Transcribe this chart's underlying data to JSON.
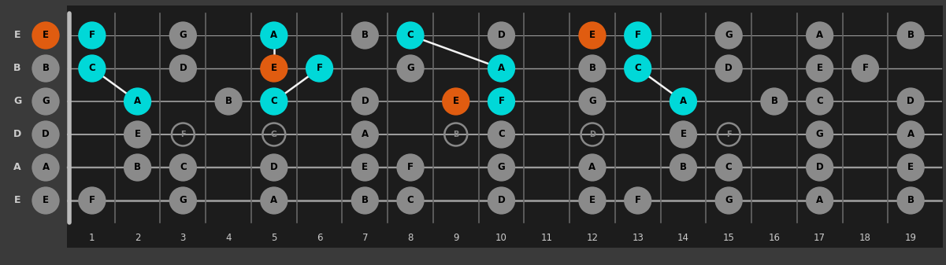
{
  "bg_color": "#3a3a3a",
  "fretboard_color": "#1c1c1c",
  "string_color": "#c8c8c8",
  "fret_color": "#666666",
  "nut_color": "#bbbbbb",
  "num_frets": 19,
  "num_strings": 6,
  "string_names": [
    "E",
    "B",
    "G",
    "D",
    "A",
    "E"
  ],
  "note_color_gray": "#8a8a8a",
  "note_color_orange": "#e05c10",
  "note_color_cyan": "#00d8d8",
  "fret_label_color": "#cccccc",
  "string_label_color": "#cccccc",
  "notes": [
    {
      "string": 0,
      "fret": 0,
      "note": "E",
      "type": "orange"
    },
    {
      "string": 0,
      "fret": 1,
      "note": "F",
      "type": "cyan"
    },
    {
      "string": 0,
      "fret": 3,
      "note": "G",
      "type": "gray"
    },
    {
      "string": 0,
      "fret": 5,
      "note": "A",
      "type": "cyan"
    },
    {
      "string": 0,
      "fret": 7,
      "note": "B",
      "type": "gray"
    },
    {
      "string": 0,
      "fret": 8,
      "note": "C",
      "type": "cyan"
    },
    {
      "string": 0,
      "fret": 10,
      "note": "D",
      "type": "gray"
    },
    {
      "string": 0,
      "fret": 12,
      "note": "E",
      "type": "orange"
    },
    {
      "string": 0,
      "fret": 13,
      "note": "F",
      "type": "cyan"
    },
    {
      "string": 0,
      "fret": 15,
      "note": "G",
      "type": "gray"
    },
    {
      "string": 0,
      "fret": 17,
      "note": "A",
      "type": "gray"
    },
    {
      "string": 0,
      "fret": 19,
      "note": "B",
      "type": "gray"
    },
    {
      "string": 1,
      "fret": 0,
      "note": "B",
      "type": "gray"
    },
    {
      "string": 1,
      "fret": 1,
      "note": "C",
      "type": "cyan"
    },
    {
      "string": 1,
      "fret": 3,
      "note": "D",
      "type": "gray"
    },
    {
      "string": 1,
      "fret": 5,
      "note": "E",
      "type": "orange"
    },
    {
      "string": 1,
      "fret": 6,
      "note": "F",
      "type": "cyan"
    },
    {
      "string": 1,
      "fret": 8,
      "note": "G",
      "type": "gray"
    },
    {
      "string": 1,
      "fret": 10,
      "note": "A",
      "type": "cyan"
    },
    {
      "string": 1,
      "fret": 12,
      "note": "B",
      "type": "gray"
    },
    {
      "string": 1,
      "fret": 13,
      "note": "C",
      "type": "cyan"
    },
    {
      "string": 1,
      "fret": 15,
      "note": "D",
      "type": "gray"
    },
    {
      "string": 1,
      "fret": 17,
      "note": "E",
      "type": "gray"
    },
    {
      "string": 1,
      "fret": 18,
      "note": "F",
      "type": "gray"
    },
    {
      "string": 2,
      "fret": 0,
      "note": "G",
      "type": "gray"
    },
    {
      "string": 2,
      "fret": 2,
      "note": "A",
      "type": "cyan"
    },
    {
      "string": 2,
      "fret": 4,
      "note": "B",
      "type": "gray"
    },
    {
      "string": 2,
      "fret": 5,
      "note": "C",
      "type": "cyan"
    },
    {
      "string": 2,
      "fret": 7,
      "note": "D",
      "type": "gray"
    },
    {
      "string": 2,
      "fret": 9,
      "note": "E",
      "type": "orange"
    },
    {
      "string": 2,
      "fret": 10,
      "note": "F",
      "type": "cyan"
    },
    {
      "string": 2,
      "fret": 12,
      "note": "G",
      "type": "gray"
    },
    {
      "string": 2,
      "fret": 14,
      "note": "A",
      "type": "cyan"
    },
    {
      "string": 2,
      "fret": 16,
      "note": "B",
      "type": "gray"
    },
    {
      "string": 2,
      "fret": 17,
      "note": "C",
      "type": "gray"
    },
    {
      "string": 2,
      "fret": 19,
      "note": "D",
      "type": "gray"
    },
    {
      "string": 3,
      "fret": 0,
      "note": "D",
      "type": "gray"
    },
    {
      "string": 3,
      "fret": 2,
      "note": "E",
      "type": "gray"
    },
    {
      "string": 3,
      "fret": 3,
      "note": "F",
      "type": "outline"
    },
    {
      "string": 3,
      "fret": 5,
      "note": "G",
      "type": "outline"
    },
    {
      "string": 3,
      "fret": 7,
      "note": "A",
      "type": "gray"
    },
    {
      "string": 3,
      "fret": 9,
      "note": "B",
      "type": "outline"
    },
    {
      "string": 3,
      "fret": 10,
      "note": "C",
      "type": "gray"
    },
    {
      "string": 3,
      "fret": 12,
      "note": "D",
      "type": "outline"
    },
    {
      "string": 3,
      "fret": 14,
      "note": "E",
      "type": "gray"
    },
    {
      "string": 3,
      "fret": 15,
      "note": "F",
      "type": "outline"
    },
    {
      "string": 3,
      "fret": 17,
      "note": "G",
      "type": "gray"
    },
    {
      "string": 3,
      "fret": 19,
      "note": "A",
      "type": "gray"
    },
    {
      "string": 4,
      "fret": 0,
      "note": "A",
      "type": "gray"
    },
    {
      "string": 4,
      "fret": 2,
      "note": "B",
      "type": "gray"
    },
    {
      "string": 4,
      "fret": 3,
      "note": "C",
      "type": "gray"
    },
    {
      "string": 4,
      "fret": 5,
      "note": "D",
      "type": "gray"
    },
    {
      "string": 4,
      "fret": 7,
      "note": "E",
      "type": "gray"
    },
    {
      "string": 4,
      "fret": 8,
      "note": "F",
      "type": "gray"
    },
    {
      "string": 4,
      "fret": 10,
      "note": "G",
      "type": "gray"
    },
    {
      "string": 4,
      "fret": 12,
      "note": "A",
      "type": "gray"
    },
    {
      "string": 4,
      "fret": 14,
      "note": "B",
      "type": "gray"
    },
    {
      "string": 4,
      "fret": 15,
      "note": "C",
      "type": "gray"
    },
    {
      "string": 4,
      "fret": 17,
      "note": "D",
      "type": "gray"
    },
    {
      "string": 4,
      "fret": 19,
      "note": "E",
      "type": "gray"
    },
    {
      "string": 5,
      "fret": 0,
      "note": "E",
      "type": "gray"
    },
    {
      "string": 5,
      "fret": 1,
      "note": "F",
      "type": "gray"
    },
    {
      "string": 5,
      "fret": 3,
      "note": "G",
      "type": "gray"
    },
    {
      "string": 5,
      "fret": 5,
      "note": "A",
      "type": "gray"
    },
    {
      "string": 5,
      "fret": 7,
      "note": "B",
      "type": "gray"
    },
    {
      "string": 5,
      "fret": 8,
      "note": "C",
      "type": "gray"
    },
    {
      "string": 5,
      "fret": 10,
      "note": "D",
      "type": "gray"
    },
    {
      "string": 5,
      "fret": 12,
      "note": "E",
      "type": "gray"
    },
    {
      "string": 5,
      "fret": 13,
      "note": "F",
      "type": "gray"
    },
    {
      "string": 5,
      "fret": 15,
      "note": "G",
      "type": "gray"
    },
    {
      "string": 5,
      "fret": 17,
      "note": "A",
      "type": "gray"
    },
    {
      "string": 5,
      "fret": 19,
      "note": "B",
      "type": "gray"
    }
  ],
  "connector_lines": [
    {
      "from_string": 1,
      "from_fret": 1,
      "to_string": 2,
      "to_fret": 2
    },
    {
      "from_string": 1,
      "from_fret": 5,
      "to_string": 0,
      "to_fret": 5
    },
    {
      "from_string": 1,
      "from_fret": 10,
      "to_string": 0,
      "to_fret": 8
    },
    {
      "from_string": 2,
      "from_fret": 5,
      "to_string": 1,
      "to_fret": 6
    },
    {
      "from_string": 1,
      "from_fret": 13,
      "to_string": 2,
      "to_fret": 14
    }
  ]
}
